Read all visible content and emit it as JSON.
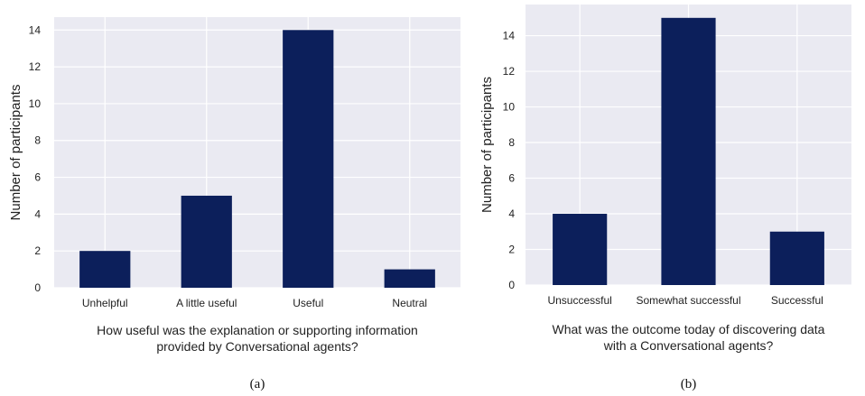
{
  "chart_data": [
    {
      "type": "bar",
      "categories": [
        "Unhelpful",
        "A little useful",
        "Useful",
        "Neutral"
      ],
      "values": [
        2,
        5,
        14,
        1
      ],
      "xlabel": "How useful was the explanation or supporting information provided by Conversational agents?",
      "xlabel_lines": [
        "How useful was the explanation or supporting information",
        "provided by Conversational agents?"
      ],
      "ylabel": "Number of participants",
      "ylim": [
        0,
        14.7
      ],
      "yticks": [
        0,
        2,
        4,
        6,
        8,
        10,
        12,
        14
      ],
      "grid": true,
      "caption": "(a)",
      "bar_color": "#0c1f5b",
      "background_color": "#eaeaf2"
    },
    {
      "type": "bar",
      "categories": [
        "Unsuccessful",
        "Somewhat successful",
        "Successful"
      ],
      "values": [
        4,
        15,
        3
      ],
      "xlabel": "What was the outcome today of discovering data with a Conversational agents?",
      "xlabel_lines": [
        "What was the outcome today of discovering data",
        "with a Conversational agents?"
      ],
      "ylabel": "Number of participants",
      "ylim": [
        0,
        15.75
      ],
      "yticks": [
        0,
        2,
        4,
        6,
        8,
        10,
        12,
        14
      ],
      "grid": true,
      "caption": "(b)",
      "bar_color": "#0c1f5b",
      "background_color": "#eaeaf2"
    }
  ]
}
